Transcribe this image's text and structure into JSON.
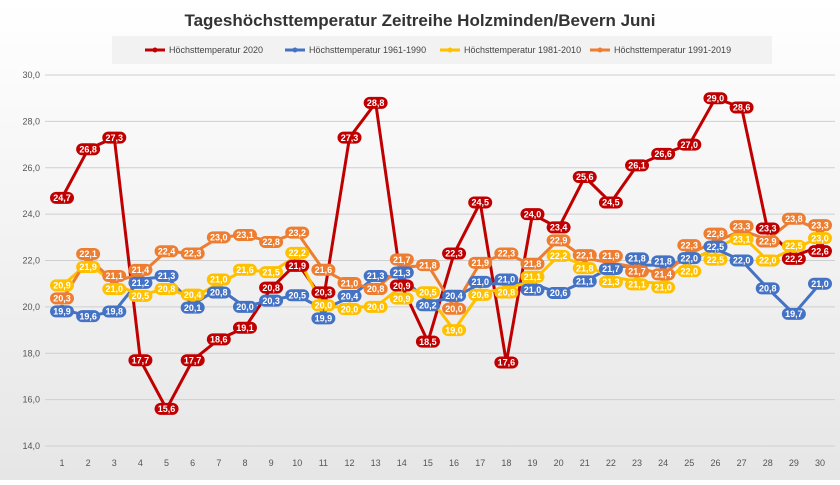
{
  "chart_data": {
    "type": "line",
    "title": "Tageshöchsttemperatur Zeitreihe Holzminden/Bevern Juni",
    "xlabel": "",
    "ylabel": "",
    "x": [
      1,
      2,
      3,
      4,
      5,
      6,
      7,
      8,
      9,
      10,
      11,
      12,
      13,
      14,
      15,
      16,
      17,
      18,
      19,
      20,
      21,
      22,
      23,
      24,
      25,
      26,
      27,
      28,
      29,
      30
    ],
    "ylim": [
      14,
      30
    ],
    "yticks": [
      "14,0",
      "16,0",
      "18,0",
      "20,0",
      "22,0",
      "24,0",
      "26,0",
      "28,0",
      "30,0"
    ],
    "grid": true,
    "legend_position": "top",
    "series": [
      {
        "name": "Höchsttemperatur 2020",
        "color": "#c00000",
        "values": [
          24.7,
          26.8,
          27.3,
          17.7,
          15.6,
          17.7,
          18.6,
          19.1,
          20.8,
          21.9,
          20.3,
          27.3,
          28.8,
          20.9,
          18.5,
          22.3,
          24.5,
          17.6,
          24.0,
          23.4,
          25.6,
          24.5,
          26.1,
          26.6,
          27.0,
          29.0,
          28.6,
          23.3,
          22.2,
          22.6
        ]
      },
      {
        "name": "Höchsttemperatur 1961-1990",
        "color": "#4472c4",
        "values": [
          19.9,
          19.6,
          19.8,
          21.2,
          21.3,
          20.1,
          20.8,
          20.0,
          20.3,
          20.5,
          19.9,
          20.4,
          21.3,
          21.3,
          20.2,
          20.4,
          21.0,
          21.0,
          21.0,
          20.6,
          21.1,
          21.7,
          21.8,
          21.8,
          22.0,
          22.5,
          22.0,
          20.8,
          19.7,
          21.0
        ]
      },
      {
        "name": "Höchsttemperatur 1981-2010",
        "color": "#ffc000",
        "values": [
          20.9,
          21.9,
          21.0,
          20.5,
          20.8,
          20.4,
          21.0,
          21.6,
          21.5,
          22.2,
          20.0,
          20.0,
          20.0,
          20.9,
          20.5,
          19.0,
          20.6,
          20.8,
          21.1,
          22.2,
          21.8,
          21.3,
          21.1,
          21.0,
          22.0,
          22.5,
          23.1,
          22.0,
          22.5,
          23.0
        ]
      },
      {
        "name": "Höchsttemperatur 1991-2019",
        "color": "#ed7d31",
        "values": [
          20.3,
          22.1,
          21.1,
          21.4,
          22.4,
          22.3,
          23.0,
          23.1,
          22.8,
          23.2,
          21.6,
          21.0,
          20.8,
          21.7,
          21.8,
          20.0,
          21.9,
          22.3,
          21.8,
          22.9,
          22.1,
          21.9,
          21.7,
          21.4,
          22.3,
          22.8,
          23.3,
          22.9,
          23.8,
          23.3
        ]
      }
    ]
  }
}
